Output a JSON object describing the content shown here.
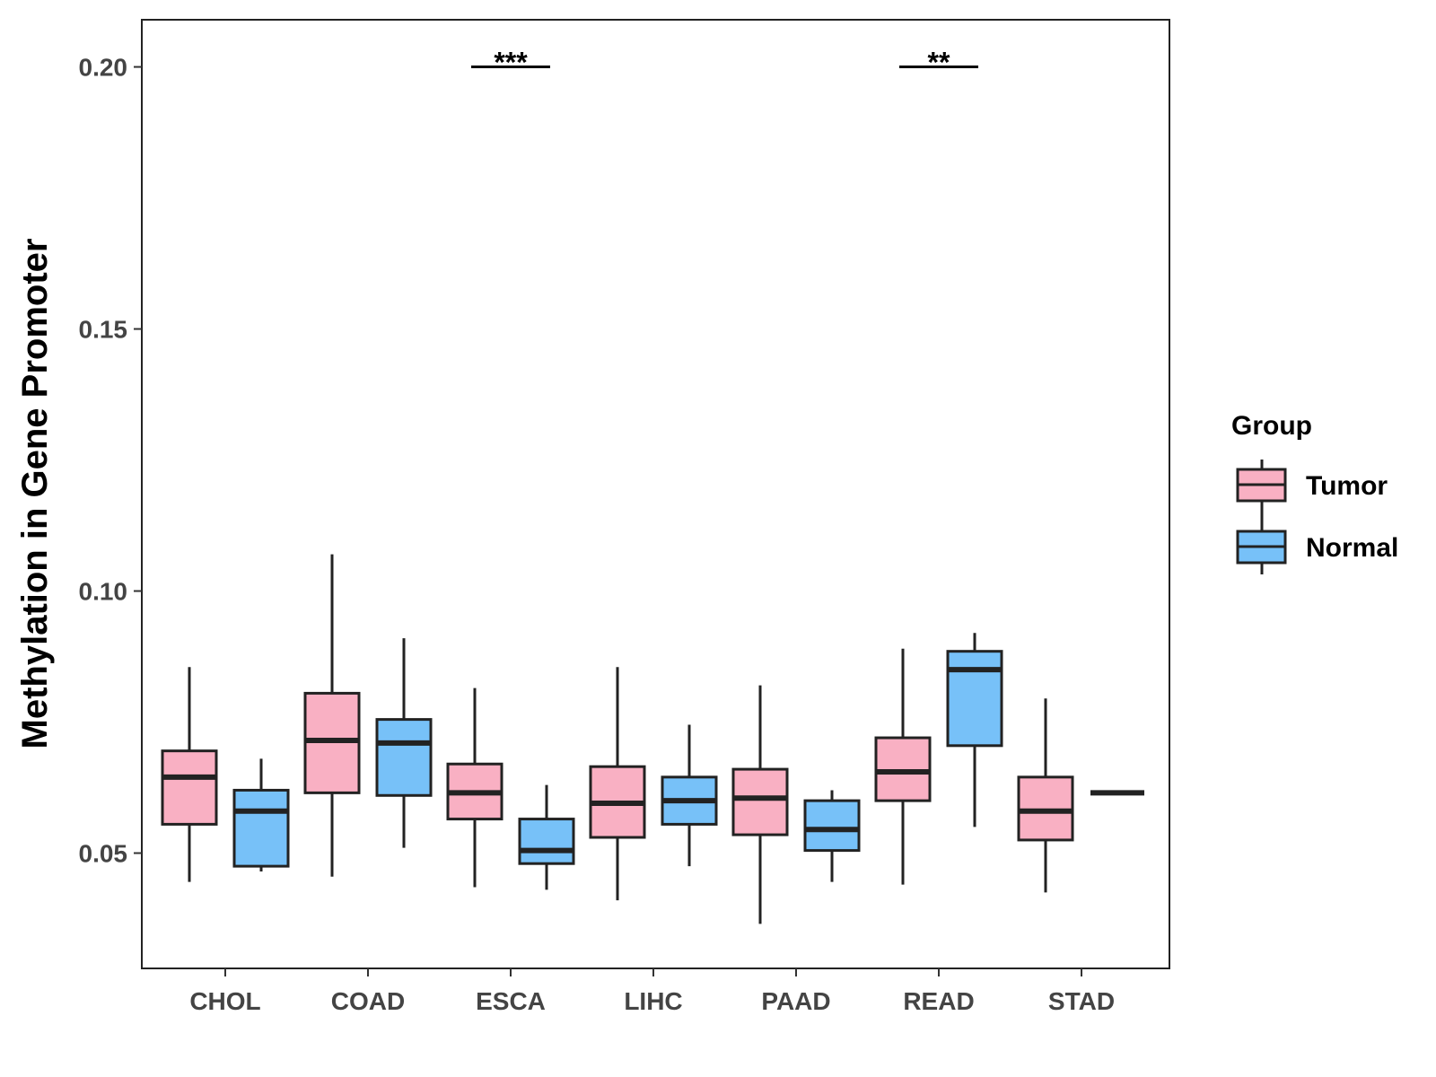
{
  "chart_data": {
    "type": "boxplot",
    "title": "",
    "xlabel": "",
    "ylabel": "Methylation in Gene Promoter",
    "ylim": [
      0.028,
      0.209
    ],
    "yticks": [
      0.05,
      0.1,
      0.15,
      0.2
    ],
    "ytick_labels": [
      "0.05",
      "0.10",
      "0.15",
      "0.20"
    ],
    "categories": [
      "CHOL",
      "COAD",
      "ESCA",
      "LIHC",
      "PAAD",
      "READ",
      "STAD"
    ],
    "legend": {
      "title": "Group",
      "position": "right",
      "entries": [
        "Tumor",
        "Normal"
      ]
    },
    "colors": {
      "Tumor": "#F9B0C3",
      "Normal": "#77C1F8",
      "outline": "#222222"
    },
    "series": [
      {
        "name": "Tumor",
        "boxes": [
          {
            "whisker_low": 0.0445,
            "q1": 0.0555,
            "median": 0.0645,
            "q3": 0.0695,
            "whisker_high": 0.0855
          },
          {
            "whisker_low": 0.0455,
            "q1": 0.0615,
            "median": 0.0715,
            "q3": 0.0805,
            "whisker_high": 0.107
          },
          {
            "whisker_low": 0.0435,
            "q1": 0.0565,
            "median": 0.0615,
            "q3": 0.067,
            "whisker_high": 0.0815
          },
          {
            "whisker_low": 0.041,
            "q1": 0.053,
            "median": 0.0595,
            "q3": 0.0665,
            "whisker_high": 0.0855
          },
          {
            "whisker_low": 0.0365,
            "q1": 0.0535,
            "median": 0.0605,
            "q3": 0.066,
            "whisker_high": 0.082
          },
          {
            "whisker_low": 0.044,
            "q1": 0.06,
            "median": 0.0655,
            "q3": 0.072,
            "whisker_high": 0.089
          },
          {
            "whisker_low": 0.0425,
            "q1": 0.0525,
            "median": 0.058,
            "q3": 0.0645,
            "whisker_high": 0.0795
          }
        ]
      },
      {
        "name": "Normal",
        "boxes": [
          {
            "whisker_low": 0.0465,
            "q1": 0.0475,
            "median": 0.058,
            "q3": 0.062,
            "whisker_high": 0.068
          },
          {
            "whisker_low": 0.051,
            "q1": 0.061,
            "median": 0.071,
            "q3": 0.0755,
            "whisker_high": 0.091
          },
          {
            "whisker_low": 0.043,
            "q1": 0.048,
            "median": 0.0505,
            "q3": 0.0565,
            "whisker_high": 0.063
          },
          {
            "whisker_low": 0.0475,
            "q1": 0.0555,
            "median": 0.06,
            "q3": 0.0645,
            "whisker_high": 0.0745
          },
          {
            "whisker_low": 0.0445,
            "q1": 0.0505,
            "median": 0.0545,
            "q3": 0.06,
            "whisker_high": 0.062
          },
          {
            "whisker_low": 0.055,
            "q1": 0.0705,
            "median": 0.085,
            "q3": 0.0885,
            "whisker_high": 0.092
          },
          {
            "whisker_low": 0.0615,
            "q1": 0.0615,
            "median": 0.0615,
            "q3": 0.0615,
            "whisker_high": 0.0615
          }
        ]
      }
    ],
    "significance": [
      {
        "category": "ESCA",
        "label": "***",
        "y": 0.2
      },
      {
        "category": "READ",
        "label": "**",
        "y": 0.2
      }
    ]
  }
}
